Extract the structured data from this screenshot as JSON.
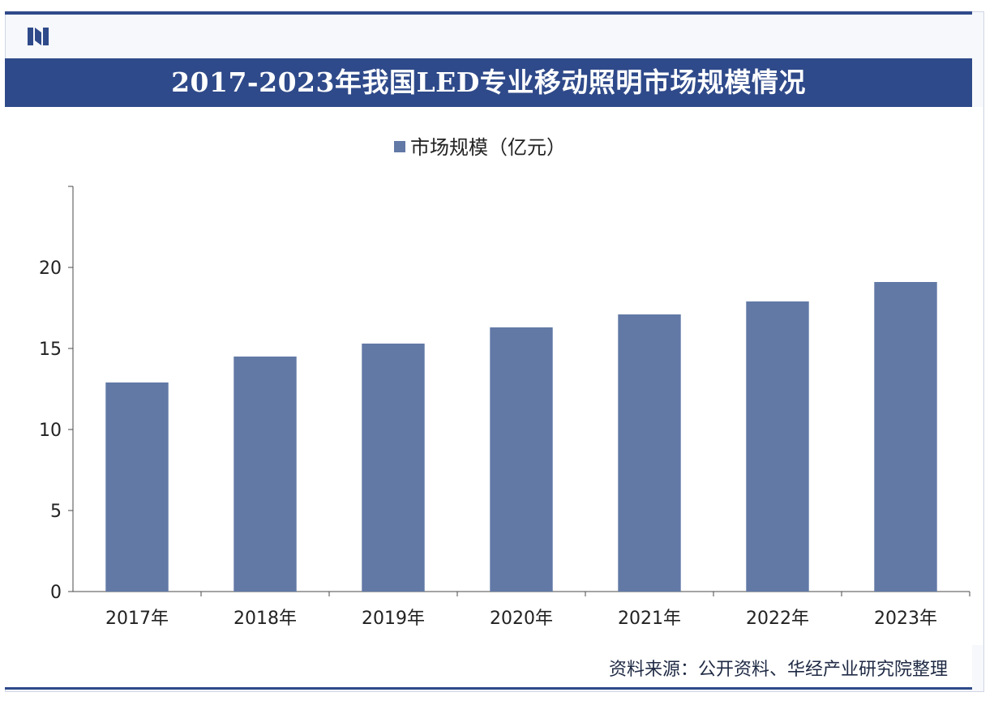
{
  "header": {
    "title": "2017-2023年我国LED专业移动照明市场规模情况"
  },
  "colors": {
    "brand": "#2f4a8a",
    "bar": "#6279a6",
    "axis": "#4a4a4a"
  },
  "chart_data": {
    "type": "bar",
    "categories": [
      "2017年",
      "2018年",
      "2019年",
      "2020年",
      "2021年",
      "2022年",
      "2023年"
    ],
    "series": [
      {
        "name": "市场规模（亿元）",
        "values": [
          12.9,
          14.5,
          15.3,
          16.3,
          17.1,
          17.9,
          19.1
        ]
      }
    ],
    "ylim": [
      0,
      25
    ],
    "yticks": [
      0,
      5,
      10,
      15,
      20
    ],
    "legend_position": "top-center",
    "grid": false
  },
  "footer": {
    "source": "资料来源：公开资料、华经产业研究院整理"
  }
}
